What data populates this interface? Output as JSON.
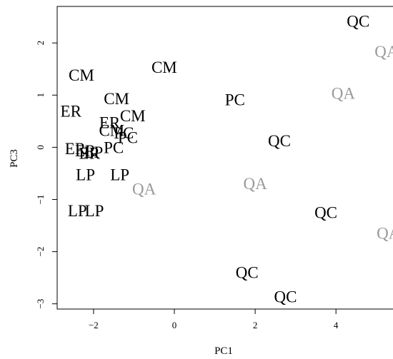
{
  "chart_data": {
    "type": "scatter",
    "title": "",
    "xlabel": "PC1",
    "ylabel": "PC3",
    "xlim": [
      -2.9,
      5.5
    ],
    "ylim": [
      -3.1,
      2.7
    ],
    "xticks": [
      -2,
      0,
      2,
      4
    ],
    "yticks": [
      -3,
      -2,
      -1,
      0,
      1,
      2
    ],
    "grid": false,
    "legend": "none",
    "colors": {
      "dark": "#000000",
      "gray": "#999999"
    },
    "points": [
      {
        "label": "QC",
        "x": 4.55,
        "y": 2.41,
        "color": "dark"
      },
      {
        "label": "QA",
        "x": 5.25,
        "y": 1.83,
        "color": "gray"
      },
      {
        "label": "QA",
        "x": 4.18,
        "y": 1.03,
        "color": "gray"
      },
      {
        "label": "CM",
        "x": -0.25,
        "y": 1.53,
        "color": "dark"
      },
      {
        "label": "CM",
        "x": -2.3,
        "y": 1.38,
        "color": "dark"
      },
      {
        "label": "CM",
        "x": -1.43,
        "y": 0.93,
        "color": "dark"
      },
      {
        "label": "PC",
        "x": 1.5,
        "y": 0.91,
        "color": "dark"
      },
      {
        "label": "ER",
        "x": -2.56,
        "y": 0.69,
        "color": "dark"
      },
      {
        "label": "CM",
        "x": -1.03,
        "y": 0.6,
        "color": "dark"
      },
      {
        "label": "ER",
        "x": -1.6,
        "y": 0.47,
        "color": "dark"
      },
      {
        "label": "CM",
        "x": -1.55,
        "y": 0.32,
        "color": "dark"
      },
      {
        "label": "PC",
        "x": -1.25,
        "y": 0.27,
        "color": "dark"
      },
      {
        "label": "PC",
        "x": -1.15,
        "y": 0.18,
        "color": "dark"
      },
      {
        "label": "QC",
        "x": 2.6,
        "y": 0.12,
        "color": "dark"
      },
      {
        "label": "ER",
        "x": -2.45,
        "y": -0.03,
        "color": "dark"
      },
      {
        "label": "PC",
        "x": -1.5,
        "y": -0.01,
        "color": "dark"
      },
      {
        "label": "ER",
        "x": -2.2,
        "y": -0.07,
        "color": "dark"
      },
      {
        "label": "ER",
        "x": -2.1,
        "y": -0.12,
        "color": "dark"
      },
      {
        "label": "LP",
        "x": -2.0,
        "y": -0.1,
        "color": "dark"
      },
      {
        "label": "LP",
        "x": -2.2,
        "y": -0.53,
        "color": "dark"
      },
      {
        "label": "LP",
        "x": -1.35,
        "y": -0.53,
        "color": "dark"
      },
      {
        "label": "QA",
        "x": -0.75,
        "y": -0.8,
        "color": "gray"
      },
      {
        "label": "QA",
        "x": 2.0,
        "y": -0.7,
        "color": "gray"
      },
      {
        "label": "LP",
        "x": -2.4,
        "y": -1.22,
        "color": "dark"
      },
      {
        "label": "LP",
        "x": -1.98,
        "y": -1.22,
        "color": "dark"
      },
      {
        "label": "QC",
        "x": 3.75,
        "y": -1.25,
        "color": "dark"
      },
      {
        "label": "QA",
        "x": 5.3,
        "y": -1.65,
        "color": "gray"
      },
      {
        "label": "QC",
        "x": 1.8,
        "y": -2.4,
        "color": "dark"
      },
      {
        "label": "QC",
        "x": 2.75,
        "y": -2.87,
        "color": "dark"
      }
    ]
  }
}
